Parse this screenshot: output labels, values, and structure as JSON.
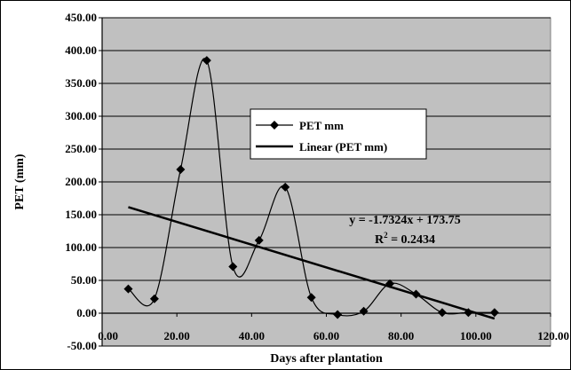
{
  "chart_data": {
    "type": "line",
    "title": "",
    "xlabel": "Days after plantation",
    "ylabel": "PET (mm)",
    "xlim": [
      0,
      120
    ],
    "ylim": [
      -50,
      450
    ],
    "x_ticks": [
      0,
      20,
      40,
      60,
      80,
      100,
      120
    ],
    "x_tick_labels": [
      "0.00",
      "20.00",
      "40.00",
      "60.00",
      "80.00",
      "100.00",
      "120.00"
    ],
    "y_ticks": [
      -50,
      0,
      50,
      100,
      150,
      200,
      250,
      300,
      350,
      400,
      450
    ],
    "y_tick_labels": [
      "-50.00",
      "0.00",
      "50.00",
      "100.00",
      "150.00",
      "200.00",
      "250.00",
      "300.00",
      "350.00",
      "400.00",
      "450.00"
    ],
    "grid": true,
    "legend_position": "center",
    "series": [
      {
        "name": "PET mm",
        "style": "smooth line with diamond markers",
        "x": [
          7,
          14,
          21,
          28,
          35,
          42,
          49,
          56,
          63,
          70,
          77,
          84,
          91,
          98,
          105
        ],
        "y": [
          37,
          22,
          219,
          385,
          71,
          111,
          192,
          24,
          -2,
          3,
          45,
          29,
          1,
          1,
          1
        ]
      },
      {
        "name": "Linear (PET mm)",
        "style": "trend line",
        "slope": -1.7324,
        "intercept": 173.75,
        "x_range": [
          7,
          105
        ]
      }
    ],
    "annotations": {
      "equation": "y = -1.7324x + 173.75",
      "r_squared_prefix": "R",
      "r_squared_sup": "2",
      "r_squared_value": " = 0.2434"
    },
    "colors": {
      "plot_background": "#c0c0c0",
      "series": "#000000",
      "trend": "#000000"
    }
  }
}
